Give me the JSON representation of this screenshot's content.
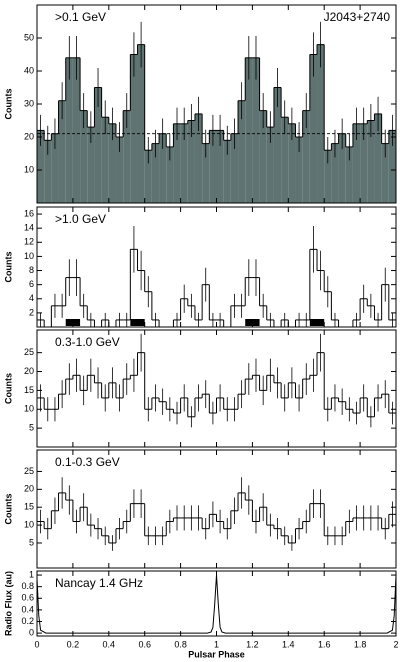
{
  "chart_data": [
    {
      "type": "histogram",
      "label": ">0.1 GeV",
      "annotation": "J2043+2740",
      "ylabel": "Counts",
      "fill": "#5f7472",
      "background": 21,
      "bins": [
        0,
        0.04,
        0.08,
        0.12,
        0.16,
        0.2,
        0.24,
        0.28,
        0.32,
        0.36,
        0.4,
        0.44,
        0.48,
        0.52,
        0.56,
        0.6,
        0.64,
        0.68,
        0.72,
        0.76,
        0.8,
        0.84,
        0.88,
        0.92,
        0.96,
        1,
        1.04,
        1.08,
        1.12,
        1.16,
        1.2,
        1.24,
        1.28,
        1.32,
        1.36,
        1.4,
        1.44,
        1.48,
        1.52,
        1.56,
        1.6,
        1.64,
        1.68,
        1.72,
        1.76,
        1.8,
        1.84,
        1.88,
        1.92,
        1.96,
        2
      ],
      "values": [
        22,
        19,
        21,
        31,
        44,
        44,
        28,
        23,
        35,
        26,
        24,
        20,
        28,
        45,
        48,
        16,
        18,
        21,
        17,
        24,
        24,
        25,
        27,
        18,
        22,
        22,
        19,
        21,
        31,
        44,
        44,
        28,
        23,
        35,
        26,
        24,
        20,
        28,
        45,
        48,
        16,
        18,
        21,
        17,
        24,
        24,
        25,
        27,
        18,
        22
      ],
      "errors": [
        4.7,
        4.4,
        4.6,
        5.6,
        6.6,
        6.6,
        5.3,
        4.8,
        5.9,
        5.1,
        4.9,
        4.5,
        5.3,
        6.7,
        6.9,
        4,
        4.2,
        4.6,
        4.1,
        4.9,
        4.9,
        5,
        5.2,
        4.2,
        4.7,
        4.7,
        4.4,
        4.6,
        5.6,
        6.6,
        6.6,
        5.3,
        4.8,
        5.9,
        5.1,
        4.9,
        4.5,
        5.3,
        6.7,
        6.9,
        4,
        4.2,
        4.6,
        4.1,
        4.9,
        4.9,
        5,
        5.2,
        4.2,
        4.7
      ],
      "xlim": [
        0,
        2
      ],
      "ylim": [
        0,
        60
      ],
      "yticks": [
        10,
        20,
        30,
        40,
        50
      ]
    },
    {
      "type": "histogram",
      "label": ">1.0 GeV",
      "ylabel": "Counts",
      "on_pulse": [
        [
          0.16,
          0.24
        ],
        [
          0.52,
          0.6
        ],
        [
          1.16,
          1.24
        ],
        [
          1.52,
          1.6
        ]
      ],
      "bins": [
        0,
        0.04,
        0.08,
        0.12,
        0.16,
        0.2,
        0.24,
        0.28,
        0.32,
        0.36,
        0.4,
        0.44,
        0.48,
        0.52,
        0.56,
        0.6,
        0.64,
        0.68,
        0.72,
        0.76,
        0.8,
        0.84,
        0.88,
        0.92,
        0.96,
        1,
        1.04,
        1.08,
        1.12,
        1.16,
        1.2,
        1.24,
        1.28,
        1.32,
        1.36,
        1.4,
        1.44,
        1.48,
        1.52,
        1.56,
        1.6,
        1.64,
        1.68,
        1.72,
        1.76,
        1.8,
        1.84,
        1.88,
        1.92,
        1.96,
        2
      ],
      "values": [
        1,
        0,
        3,
        3,
        7,
        7,
        3,
        1,
        0,
        1,
        0,
        1,
        1,
        11,
        8,
        5,
        1,
        0,
        0,
        1,
        4,
        3,
        1,
        6,
        1,
        1,
        0,
        3,
        3,
        7,
        7,
        3,
        1,
        0,
        1,
        0,
        1,
        1,
        11,
        8,
        5,
        1,
        0,
        0,
        1,
        4,
        3,
        1,
        6,
        1
      ],
      "errors": [
        1,
        0,
        1.7,
        1.7,
        2.6,
        2.6,
        1.7,
        1,
        0,
        1,
        0,
        1,
        1,
        3.3,
        2.8,
        2.2,
        1,
        0,
        0,
        1,
        2,
        1.7,
        1,
        2.4,
        1,
        1,
        0,
        1.7,
        1.7,
        2.6,
        2.6,
        1.7,
        1,
        0,
        1,
        0,
        1,
        1,
        3.3,
        2.8,
        2.2,
        1,
        0,
        0,
        1,
        2,
        1.7,
        1,
        2.4,
        1
      ],
      "xlim": [
        0,
        2
      ],
      "ylim": [
        0,
        17
      ],
      "yticks": [
        2,
        4,
        6,
        8,
        10,
        12,
        14,
        16
      ]
    },
    {
      "type": "histogram",
      "label": "0.3-1.0 GeV",
      "ylabel": "Counts",
      "bins": [
        0,
        0.04,
        0.08,
        0.12,
        0.16,
        0.2,
        0.24,
        0.28,
        0.32,
        0.36,
        0.4,
        0.44,
        0.48,
        0.52,
        0.56,
        0.6,
        0.64,
        0.68,
        0.72,
        0.76,
        0.8,
        0.84,
        0.88,
        0.92,
        0.96,
        1,
        1.04,
        1.08,
        1.12,
        1.16,
        1.2,
        1.24,
        1.28,
        1.32,
        1.36,
        1.4,
        1.44,
        1.48,
        1.52,
        1.56,
        1.6,
        1.64,
        1.68,
        1.72,
        1.76,
        1.8,
        1.84,
        1.88,
        1.92,
        1.96,
        2
      ],
      "values": [
        13,
        10,
        10,
        14,
        18,
        19,
        15,
        19,
        17,
        13,
        17,
        13,
        18,
        19,
        25,
        10,
        13,
        12,
        10,
        9,
        13,
        8,
        13,
        14,
        9,
        13,
        10,
        10,
        14,
        18,
        19,
        15,
        19,
        17,
        13,
        17,
        13,
        18,
        19,
        25,
        10,
        13,
        12,
        10,
        9,
        13,
        8,
        13,
        14,
        9
      ],
      "errors": [
        3.6,
        3.2,
        3.2,
        3.7,
        4.2,
        4.4,
        3.9,
        4.4,
        4.1,
        3.6,
        4.1,
        3.6,
        4.2,
        4.4,
        5,
        3.2,
        3.6,
        3.5,
        3.2,
        3,
        3.6,
        2.8,
        3.6,
        3.7,
        3,
        3.6,
        3.2,
        3.2,
        3.7,
        4.2,
        4.4,
        3.9,
        4.4,
        4.1,
        3.6,
        4.1,
        3.6,
        4.2,
        4.4,
        5,
        3.2,
        3.6,
        3.5,
        3.2,
        3,
        3.6,
        2.8,
        3.6,
        3.7,
        3
      ],
      "xlim": [
        0,
        2
      ],
      "ylim": [
        0,
        31
      ],
      "yticks": [
        5,
        10,
        15,
        20,
        25
      ]
    },
    {
      "type": "histogram",
      "label": "0.1-0.3 GeV",
      "ylabel": "Counts",
      "bins": [
        0,
        0.04,
        0.08,
        0.12,
        0.16,
        0.2,
        0.24,
        0.28,
        0.32,
        0.36,
        0.4,
        0.44,
        0.48,
        0.52,
        0.56,
        0.6,
        0.64,
        0.68,
        0.72,
        0.76,
        0.8,
        0.84,
        0.88,
        0.92,
        0.96,
        1,
        1.04,
        1.08,
        1.12,
        1.16,
        1.2,
        1.24,
        1.28,
        1.32,
        1.36,
        1.4,
        1.44,
        1.48,
        1.52,
        1.56,
        1.6,
        1.64,
        1.68,
        1.72,
        1.76,
        1.8,
        1.84,
        1.88,
        1.92,
        1.96,
        2
      ],
      "values": [
        11,
        9,
        14,
        19,
        17,
        11,
        15,
        10,
        9,
        7,
        5,
        9,
        11,
        16,
        16,
        7,
        7,
        7,
        11,
        12,
        12,
        12,
        12,
        9,
        13,
        11,
        9,
        14,
        19,
        17,
        11,
        15,
        10,
        9,
        7,
        5,
        9,
        11,
        16,
        16,
        7,
        7,
        7,
        11,
        12,
        12,
        12,
        12,
        9,
        13
      ],
      "errors": [
        3.3,
        3,
        3.7,
        4.4,
        4.1,
        3.3,
        3.9,
        3.2,
        3,
        2.6,
        2.2,
        3,
        3.3,
        4,
        4,
        2.6,
        2.6,
        2.6,
        3.3,
        3.5,
        3.5,
        3.5,
        3.5,
        3,
        3.6,
        3.3,
        3,
        3.7,
        4.4,
        4.1,
        3.3,
        3.9,
        3.2,
        3,
        2.6,
        2.2,
        3,
        3.3,
        4,
        4,
        2.6,
        2.6,
        2.6,
        3.3,
        3.5,
        3.5,
        3.5,
        3.5,
        3,
        3.6
      ],
      "xlim": [
        0,
        2
      ],
      "ylim": [
        -2,
        31
      ],
      "yticks": [
        5,
        10,
        15,
        20,
        25
      ]
    },
    {
      "type": "line",
      "label": "Nancay 1.4 GHz",
      "ylabel": "Radio Flux (au)",
      "xlabel": "Pulsar Phase",
      "x": [
        0,
        0.01,
        0.02,
        0.05,
        0.1,
        0.5,
        0.9,
        0.95,
        0.97,
        0.98,
        0.99,
        1,
        1.01,
        1.02,
        1.03,
        1.05,
        1.1,
        1.5,
        1.9,
        1.95,
        1.98,
        1.99,
        2
      ],
      "values": [
        0.95,
        0.3,
        0.05,
        0,
        0,
        0,
        0,
        0,
        0.02,
        0.1,
        0.5,
        1,
        0.5,
        0.1,
        0.02,
        0,
        0,
        0,
        0,
        0,
        0.05,
        0.3,
        1
      ],
      "xlim": [
        0,
        2
      ],
      "ylim": [
        -0.05,
        1.07
      ],
      "yticks": [
        0,
        0.2,
        0.4,
        0.6,
        0.8,
        1
      ],
      "xticks": [
        0,
        0.2,
        0.4,
        0.6,
        0.8,
        1,
        1.2,
        1.4,
        1.6,
        1.8,
        2
      ]
    }
  ]
}
